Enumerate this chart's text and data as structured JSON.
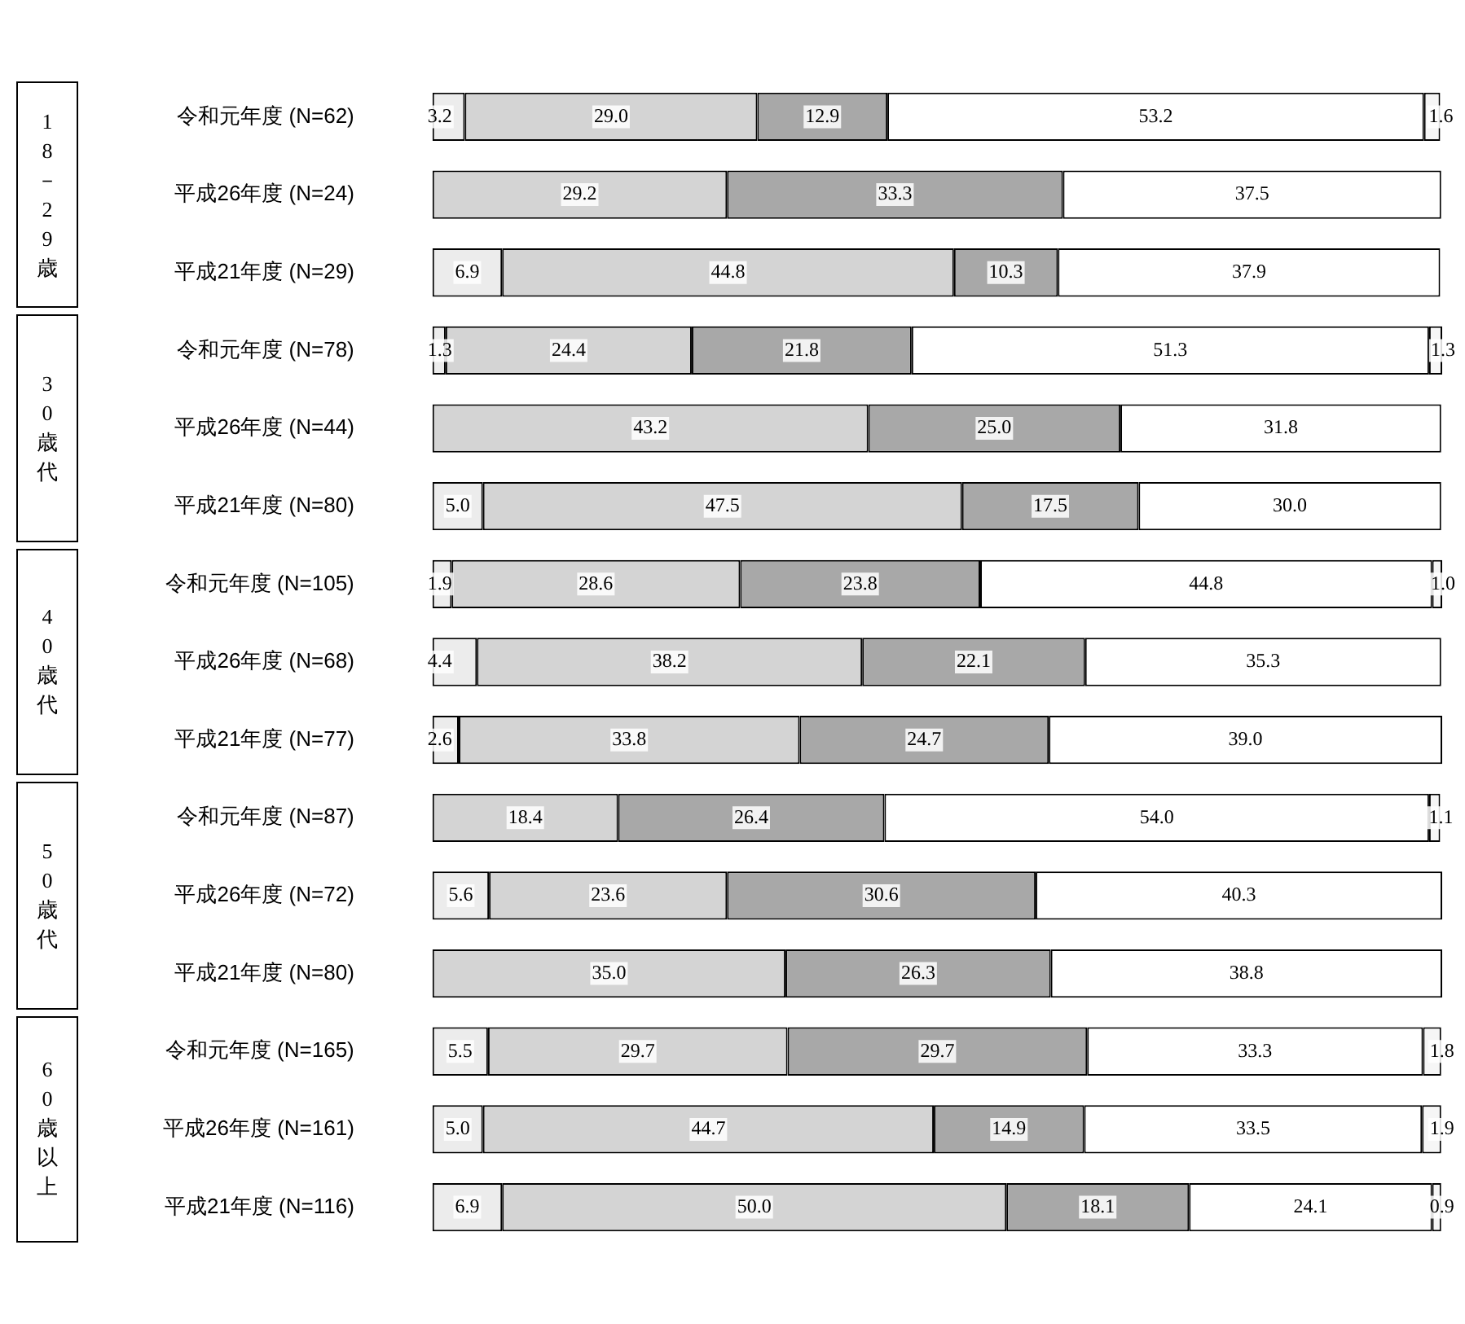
{
  "chart_data": {
    "type": "bar",
    "orientation": "horizontal",
    "stacked": true,
    "xlim": [
      0,
      100.1
    ],
    "tick_labels": "y",
    "grid": false,
    "categories": [
      "令和元年度 (N=62)",
      "平成26年度 (N=24)",
      "平成21年度 (N=29)",
      "令和元年度 (N=78)",
      "平成26年度 (N=44)",
      "平成21年度 (N=80)",
      "令和元年度 (N=105)",
      "平成26年度 (N=68)",
      "平成21年度 (N=77)",
      "令和元年度 (N=87)",
      "平成26年度 (N=72)",
      "平成21年度 (N=80)",
      "令和元年度 (N=165)",
      "平成26年度 (N=161)",
      "平成21年度 (N=116)"
    ],
    "series": [
      {
        "color": "#ececec",
        "values": [
          3.2,
          null,
          6.9,
          1.3,
          null,
          5.0,
          1.9,
          4.4,
          2.6,
          null,
          5.6,
          null,
          5.5,
          5.0,
          6.9
        ],
        "value_labels": [
          "3.2",
          null,
          "6.9",
          "1.3",
          null,
          "5.0",
          "1.9",
          "4.4",
          "2.6",
          null,
          "5.6",
          null,
          "5.5",
          "5.0",
          "6.9"
        ]
      },
      {
        "color": "#d4d4d4",
        "values": [
          29.0,
          29.2,
          44.8,
          24.4,
          43.2,
          47.5,
          28.6,
          38.2,
          33.8,
          18.4,
          23.6,
          35.0,
          29.7,
          44.7,
          50.0
        ],
        "value_labels": [
          "29.0",
          "29.2",
          "44.8",
          "24.4",
          "43.2",
          "47.5",
          "28.6",
          "38.2",
          "33.8",
          "18.4",
          "23.6",
          "35.0",
          "29.7",
          "44.7",
          "50.0"
        ]
      },
      {
        "color": "#a8a8a8",
        "values": [
          12.9,
          33.3,
          10.3,
          21.8,
          25.0,
          17.5,
          23.8,
          22.1,
          24.7,
          26.4,
          30.6,
          26.3,
          29.7,
          14.9,
          18.1
        ],
        "value_labels": [
          "12.9",
          "33.3",
          "10.3",
          "21.8",
          "25.0",
          "17.5",
          "23.8",
          "22.1",
          "24.7",
          "26.4",
          "30.6",
          "26.3",
          "29.7",
          "14.9",
          "18.1"
        ]
      },
      {
        "color": "#ffffff",
        "values": [
          53.2,
          37.5,
          37.9,
          51.3,
          31.8,
          30.0,
          44.8,
          35.3,
          39.0,
          54.0,
          40.3,
          38.8,
          33.3,
          33.5,
          24.1
        ],
        "value_labels": [
          "53.2",
          "37.5",
          "37.9",
          "51.3",
          "31.8",
          "30.0",
          "44.8",
          "35.3",
          "39.0",
          "54.0",
          "40.3",
          "38.8",
          "33.3",
          "33.5",
          "24.1"
        ]
      },
      {
        "color": "#f6f6f6",
        "values": [
          1.6,
          null,
          null,
          1.3,
          null,
          null,
          1.0,
          null,
          null,
          1.1,
          null,
          null,
          1.8,
          1.9,
          0.9
        ],
        "value_labels": [
          "1.6",
          null,
          null,
          "1.3",
          null,
          null,
          "1.0",
          null,
          null,
          "1.1",
          null,
          null,
          "1.8",
          "1.9",
          "0.9"
        ]
      }
    ],
    "annotations": [
      "18－29歳",
      "30歳代",
      "40歳代",
      "50歳代",
      "60歳以上"
    ]
  }
}
